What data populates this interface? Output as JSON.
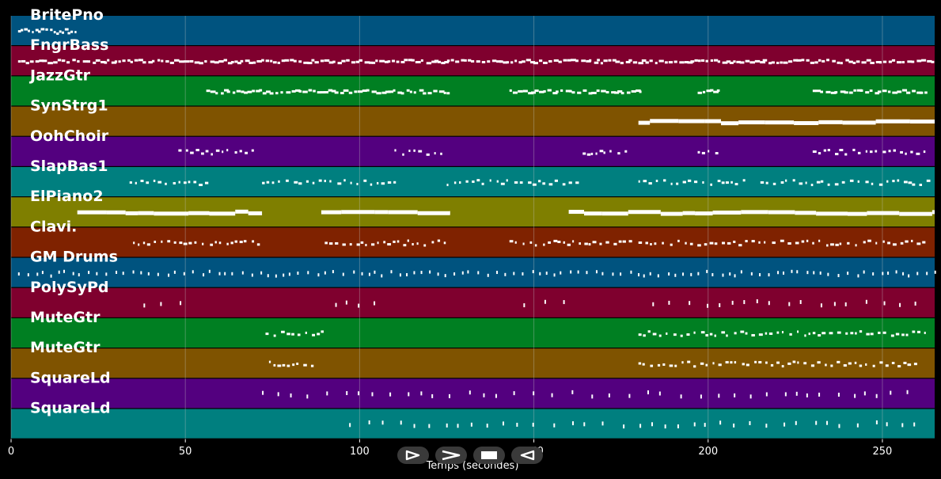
{
  "chart_data": {
    "type": "piano-roll",
    "xlabel": "Temps (secondes)",
    "xlim": [
      0,
      265
    ],
    "xticks": [
      0,
      50,
      100,
      150,
      200,
      250
    ],
    "tracks": [
      {
        "name": "BritePno",
        "color": "#00537f",
        "note_style": "dots",
        "segments": [
          [
            2,
            19
          ]
        ]
      },
      {
        "name": "FngrBass",
        "color": "#7f002e",
        "note_style": "dense",
        "segments": [
          [
            2,
            265
          ]
        ]
      },
      {
        "name": "JazzGtr",
        "color": "#007f22",
        "note_style": "dense",
        "segments": [
          [
            56,
            126
          ],
          [
            143,
            181
          ],
          [
            197,
            203
          ],
          [
            230,
            263
          ]
        ]
      },
      {
        "name": "SynStrg1",
        "color": "#7f5300",
        "note_style": "long",
        "segments": [
          [
            180,
            265
          ]
        ]
      },
      {
        "name": "OohChoir",
        "color": "#53007f",
        "note_style": "sparse",
        "segments": [
          [
            48,
            70
          ],
          [
            110,
            124
          ],
          [
            164,
            177
          ],
          [
            197,
            204
          ],
          [
            230,
            263
          ]
        ]
      },
      {
        "name": "SlapBas1",
        "color": "#007f7f",
        "note_style": "sparse",
        "segments": [
          [
            34,
            56
          ],
          [
            72,
            110
          ],
          [
            125,
            163
          ],
          [
            180,
            210
          ],
          [
            215,
            263
          ]
        ]
      },
      {
        "name": "ElPiano2",
        "color": "#7f7f00",
        "note_style": "long",
        "segments": [
          [
            19,
            72
          ],
          [
            89,
            126
          ],
          [
            160,
            265
          ]
        ]
      },
      {
        "name": "Clavi.",
        "color": "#7f2200",
        "note_style": "sparse",
        "segments": [
          [
            35,
            72
          ],
          [
            90,
            126
          ],
          [
            143,
            178
          ],
          [
            180,
            263
          ]
        ]
      },
      {
        "name": "GM Drums",
        "color": "#00537f",
        "note_style": "drums",
        "segments": [
          [
            2,
            265
          ]
        ]
      },
      {
        "name": "PolySyPd",
        "color": "#7f002e",
        "note_style": "blips",
        "segments": [
          [
            38,
            52
          ],
          [
            93,
            106
          ],
          [
            147,
            160
          ],
          [
            184,
            263
          ]
        ]
      },
      {
        "name": "MuteGtr",
        "color": "#007f22",
        "note_style": "sparse",
        "segments": [
          [
            73,
            89
          ],
          [
            180,
            263
          ]
        ]
      },
      {
        "name": "MuteGtr",
        "color": "#7f5300",
        "note_style": "sparse",
        "segments": [
          [
            74,
            87
          ],
          [
            180,
            260
          ]
        ]
      },
      {
        "name": "SquareLd",
        "color": "#53007f",
        "note_style": "blips",
        "segments": [
          [
            72,
            260
          ]
        ]
      },
      {
        "name": "SquareLd",
        "color": "#007f7f",
        "note_style": "blips",
        "segments": [
          [
            97,
            260
          ]
        ]
      }
    ]
  },
  "controls": [
    {
      "name": "play-icon"
    },
    {
      "name": "forward-icon"
    },
    {
      "name": "stop-icon"
    },
    {
      "name": "rewind-icon"
    }
  ]
}
